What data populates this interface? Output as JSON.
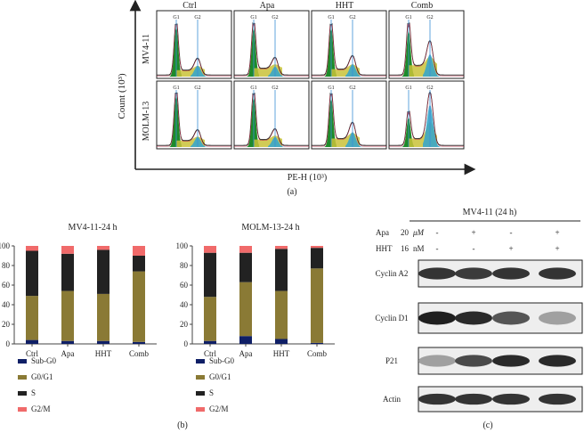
{
  "panel_a": {
    "columns": [
      "Ctrl",
      "Apa",
      "HHT",
      "Comb"
    ],
    "rows": [
      "MV4-11",
      "MOLM-13"
    ],
    "ylabel": "Count (10³)",
    "xlabel": "PE-H (10³)",
    "peak_labels": [
      "G1",
      "G2"
    ],
    "caption": "(a)"
  },
  "panel_b_legend": [
    {
      "label": "Sub-G0",
      "color": "#0f1f66"
    },
    {
      "label": "G0/G1",
      "color": "#8a7a35"
    },
    {
      "label": "S",
      "color": "#222222"
    },
    {
      "label": "G2/M",
      "color": "#f06a6a"
    }
  ],
  "panel_b_caption": "(b)",
  "chart_data": [
    {
      "type": "bar",
      "stacked": true,
      "title": "MV4-11-24 h",
      "categories": [
        "Ctrl",
        "Apa",
        "HHT",
        "Comb"
      ],
      "ylim": [
        0,
        100
      ],
      "yticks": [
        0,
        20,
        40,
        60,
        80,
        100
      ],
      "series": [
        {
          "name": "Sub-G0",
          "color": "#0f1f66",
          "values": [
            4,
            3,
            3,
            2
          ]
        },
        {
          "name": "G0/G1",
          "color": "#8a7a35",
          "values": [
            45,
            51,
            48,
            72
          ]
        },
        {
          "name": "S",
          "color": "#222222",
          "values": [
            46,
            38,
            45,
            16
          ]
        },
        {
          "name": "G2/M",
          "color": "#f06a6a",
          "values": [
            5,
            8,
            4,
            10
          ]
        }
      ]
    },
    {
      "type": "bar",
      "stacked": true,
      "title": "MOLM-13-24 h",
      "categories": [
        "Ctrl",
        "Apa",
        "HHT",
        "Comb"
      ],
      "ylim": [
        0,
        100
      ],
      "yticks": [
        0,
        20,
        40,
        60,
        80,
        100
      ],
      "series": [
        {
          "name": "Sub-G0",
          "color": "#0f1f66",
          "values": [
            3,
            8,
            5,
            1
          ]
        },
        {
          "name": "G0/G1",
          "color": "#8a7a35",
          "values": [
            45,
            55,
            49,
            76
          ]
        },
        {
          "name": "S",
          "color": "#222222",
          "values": [
            45,
            30,
            43,
            21
          ]
        },
        {
          "name": "G2/M",
          "color": "#f06a6a",
          "values": [
            7,
            7,
            3,
            2
          ]
        }
      ]
    }
  ],
  "panel_c": {
    "title": "MV4-11 (24 h)",
    "treatments": [
      {
        "drug": "Apa",
        "dose": "20",
        "unit": "μM",
        "marks": [
          "-",
          "+",
          "-",
          "+"
        ]
      },
      {
        "drug": "HHT",
        "dose": "16",
        "unit": "nM",
        "marks": [
          "-",
          "-",
          "+",
          "+"
        ]
      }
    ],
    "blots": [
      {
        "label": "Cyclin A2",
        "intensities": [
          0.85,
          0.82,
          0.85,
          0.85
        ]
      },
      {
        "label": "Cyclin D1",
        "intensities": [
          0.95,
          0.9,
          0.7,
          0.35
        ]
      },
      {
        "label": "P21",
        "intensities": [
          0.35,
          0.75,
          0.9,
          0.9
        ]
      },
      {
        "label": "Actin",
        "intensities": [
          0.85,
          0.85,
          0.85,
          0.85
        ]
      }
    ],
    "caption": "(c)"
  }
}
